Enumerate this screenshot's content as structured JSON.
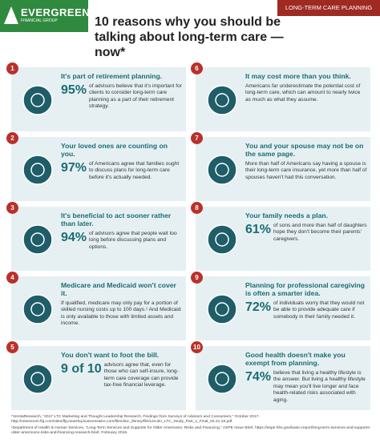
{
  "header": {
    "logo": "EVERGREEN",
    "logo_sub": "FINANCIAL GROUP",
    "tag": "LONG-TERM CARE PLANNING",
    "title": "10 reasons why you should be talking about long-term care — now*"
  },
  "items": [
    {
      "number": "1",
      "heading": "It's part of retirement planning.",
      "stat": "95%",
      "text": "of advisors believe that it's important for clients to consider long-term care planning as a part of their retirement strategy."
    },
    {
      "number": "2",
      "heading": "Your loved ones are counting on you.",
      "stat": "97%",
      "text": "of Americans agree that families ought to discuss plans for long-term care before it's actually needed."
    },
    {
      "number": "3",
      "heading": "It's beneficial to act sooner rather than later.",
      "stat": "94%",
      "text": "of advisors agree that people wait too long before discussing plans and options."
    },
    {
      "number": "4",
      "heading": "Medicare and Medicaid won't cover it.",
      "text": "If qualified, medicare may only pay for a portion of skilled nursing costs up to 100 days.¹ And Medicaid is only available to those with limited assets and income."
    },
    {
      "number": "5",
      "heading": "You don't want to foot the bill.",
      "stat": "9 of 10",
      "text": "advisors agree that, even for those who can self-insure, long-term care coverage can provide tax-free financial leverage."
    },
    {
      "number": "6",
      "heading": "It may cost more than you think.",
      "text": "Americans far underestimate the potential cost of long-term care, which can amount to nearly twice as much as what they assume."
    },
    {
      "number": "7",
      "heading": "You and your spouse may not be on the same page.",
      "text": "More than half of Americans say having a spouse is their long-term care insurance, yet more than half of spouses haven't had this conversation."
    },
    {
      "number": "8",
      "heading": "Your family needs a plan.",
      "stat": "61%",
      "text": "of sons and more than half of daughters hope they don't become their parents' caregivers."
    },
    {
      "number": "9",
      "heading": "Planning for professional caregiving is often a smarter idea.",
      "stat": "72%",
      "text": "of individuals worry that they would not be able to provide adequate care if somebody in their family needed it."
    },
    {
      "number": "10",
      "heading": "Good health doesn't make you exempt from planning.",
      "stat": "74%",
      "text": "believe that living a healthy lifestyle is the answer. But living a healthy lifestyle may mean you'll live longer and face health-related risks associated with aging."
    }
  ],
  "footnotes": [
    "*VerstaResearch, \"2017 LTC Marketing and Thought Leadership Research, Findings from Surveys of Advisors and Consumers,\" October 2017. http://newsroom.lfg.com/sites/lfg.newshq.businesswire.com/files/doc_library/file/Lincoln_LTC_Study_Part_1_Final_02.21.18.pdf.",
    "¹Department of Health & Human Services, \"Long-Term Services and Supports for Older Americans: Risks and Financing,\" ASPE Issue Brief, https://aspe.hhs.gov/basic-report/long-term-services-and-supports-older-americans-risks-and-financing-research-brief, February 2016."
  ]
}
